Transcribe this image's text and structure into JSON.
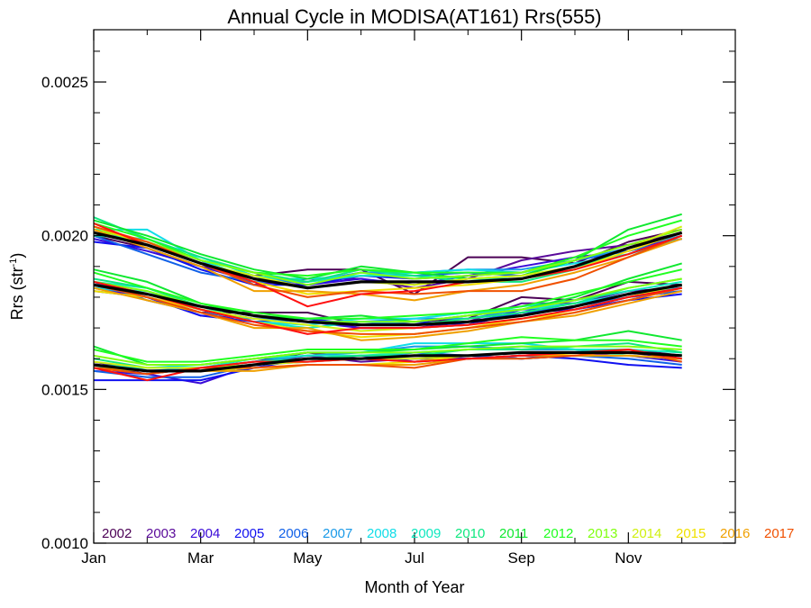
{
  "chart_data": {
    "type": "line",
    "title": "Annual Cycle in MODISA(AT161) Rrs(555)",
    "xlabel": "Month of Year",
    "ylabel_main": "Rrs (str",
    "ylabel_sup": "-1",
    "ylabel_close": ")",
    "x_range": [
      1,
      13
    ],
    "ylim": [
      0.001,
      0.00267
    ],
    "x_ticks": [
      {
        "value": 1,
        "label": "Jan"
      },
      {
        "value": 3,
        "label": "Mar"
      },
      {
        "value": 5,
        "label": "May"
      },
      {
        "value": 7,
        "label": "Jul"
      },
      {
        "value": 9,
        "label": "Sep"
      },
      {
        "value": 11,
        "label": "Nov"
      }
    ],
    "x_minor_ticks": [
      2,
      4,
      6,
      8,
      10,
      12
    ],
    "y_ticks": [
      {
        "value": 0.001,
        "label": "0.0010"
      },
      {
        "value": 0.0015,
        "label": "0.0015"
      },
      {
        "value": 0.002,
        "label": "0.0020"
      },
      {
        "value": 0.0025,
        "label": "0.0025"
      }
    ],
    "y_minor_ticks": [
      0.0011,
      0.0012,
      0.0013,
      0.0014,
      0.0016,
      0.0017,
      0.0018,
      0.0019,
      0.0021,
      0.0022,
      0.0023,
      0.0024,
      0.0026
    ],
    "months": [
      1,
      2,
      3,
      4,
      5,
      6,
      7,
      8,
      9,
      10,
      11,
      12
    ],
    "band_means": {
      "upper": [
        0.00201,
        0.00197,
        0.00191,
        0.00186,
        0.00183,
        0.00185,
        0.00185,
        0.00185,
        0.00186,
        0.0019,
        0.00196,
        0.00201
      ],
      "middle": [
        0.00184,
        0.00181,
        0.00177,
        0.00174,
        0.00172,
        0.00171,
        0.00171,
        0.00172,
        0.00174,
        0.00177,
        0.00181,
        0.00184
      ],
      "lower": [
        0.00158,
        0.00156,
        0.00156,
        0.00158,
        0.0016,
        0.0016,
        0.00161,
        0.00161,
        0.00162,
        0.00162,
        0.00162,
        0.00161
      ]
    },
    "mean_color": "#000000",
    "series": [
      {
        "name": "2002",
        "color": "#4b0055",
        "upper": [
          0.002,
          0.00196,
          0.0019,
          0.00187,
          0.00189,
          0.00189,
          0.00181,
          0.00193,
          0.00193,
          0.00191,
          0.00198,
          0.00202
        ],
        "middle": [
          0.00184,
          0.0018,
          0.00175,
          0.00175,
          0.00175,
          0.00171,
          0.00172,
          0.00173,
          0.0018,
          0.00179,
          0.00185,
          0.00184
        ],
        "lower": [
          0.00158,
          0.00155,
          0.00157,
          0.00159,
          0.00162,
          0.0016,
          0.00159,
          0.0016,
          0.00161,
          0.00162,
          0.00163,
          0.00161
        ]
      },
      {
        "name": "2003",
        "color": "#5a0a9a",
        "upper": [
          0.00201,
          0.00198,
          0.00192,
          0.00184,
          0.00186,
          0.00186,
          0.00183,
          0.00186,
          0.00192,
          0.00195,
          0.00197,
          0.00201
        ],
        "middle": [
          0.00183,
          0.0018,
          0.00176,
          0.00173,
          0.00173,
          0.0017,
          0.0017,
          0.00172,
          0.00178,
          0.00178,
          0.00182,
          0.00183
        ],
        "lower": [
          0.00159,
          0.00156,
          0.00156,
          0.00158,
          0.00161,
          0.00159,
          0.0016,
          0.0016,
          0.00161,
          0.00161,
          0.00162,
          0.0016
        ]
      },
      {
        "name": "2004",
        "color": "#3a0ad8",
        "upper": [
          0.00199,
          0.00195,
          0.0019,
          0.00185,
          0.00184,
          0.00186,
          0.00184,
          0.00187,
          0.0019,
          0.00193,
          0.00195,
          0.002
        ],
        "middle": [
          0.00183,
          0.0018,
          0.00174,
          0.00173,
          0.00172,
          0.0017,
          0.0017,
          0.00171,
          0.00176,
          0.00176,
          0.0018,
          0.00182
        ],
        "lower": [
          0.00156,
          0.00155,
          0.00152,
          0.00158,
          0.0016,
          0.00161,
          0.00159,
          0.00161,
          0.0016,
          0.00161,
          0.00161,
          0.00159
        ]
      },
      {
        "name": "2005",
        "color": "#1010f0",
        "upper": [
          0.00198,
          0.00196,
          0.00189,
          0.00184,
          0.00184,
          0.00187,
          0.00186,
          0.00187,
          0.00188,
          0.00192,
          0.00195,
          0.00199
        ],
        "middle": [
          0.00182,
          0.0018,
          0.00174,
          0.00172,
          0.00173,
          0.00171,
          0.00172,
          0.00171,
          0.00175,
          0.00176,
          0.00179,
          0.00181
        ],
        "lower": [
          0.00153,
          0.00153,
          0.00153,
          0.00157,
          0.0016,
          0.0016,
          0.00161,
          0.0016,
          0.00161,
          0.0016,
          0.00158,
          0.00157
        ]
      },
      {
        "name": "2006",
        "color": "#1060e8",
        "upper": [
          0.002,
          0.00194,
          0.00188,
          0.00185,
          0.00185,
          0.00188,
          0.00187,
          0.00188,
          0.00187,
          0.00192,
          0.00195,
          0.00199
        ],
        "middle": [
          0.00185,
          0.00179,
          0.00175,
          0.00173,
          0.00172,
          0.00172,
          0.00171,
          0.00172,
          0.00175,
          0.00177,
          0.0018,
          0.00182
        ],
        "lower": [
          0.00156,
          0.00154,
          0.00154,
          0.00158,
          0.00159,
          0.0016,
          0.00162,
          0.00161,
          0.0016,
          0.00161,
          0.0016,
          0.00158
        ]
      },
      {
        "name": "2007",
        "color": "#1a9ae8",
        "upper": [
          0.00201,
          0.00198,
          0.00191,
          0.00186,
          0.00185,
          0.00188,
          0.00188,
          0.00189,
          0.00189,
          0.00192,
          0.00196,
          0.002
        ],
        "middle": [
          0.00183,
          0.00181,
          0.00176,
          0.00173,
          0.00172,
          0.00172,
          0.00173,
          0.00173,
          0.00176,
          0.00178,
          0.00181,
          0.00183
        ],
        "lower": [
          0.00157,
          0.00156,
          0.00157,
          0.00159,
          0.00161,
          0.00162,
          0.00164,
          0.00164,
          0.00163,
          0.00163,
          0.00162,
          0.00161
        ]
      },
      {
        "name": "2008",
        "color": "#10dde8",
        "upper": [
          0.00202,
          0.00202,
          0.00192,
          0.00186,
          0.00186,
          0.00187,
          0.00188,
          0.00189,
          0.00188,
          0.00191,
          0.00194,
          0.00199
        ],
        "middle": [
          0.00183,
          0.00182,
          0.00176,
          0.00172,
          0.00171,
          0.00173,
          0.00173,
          0.00175,
          0.00176,
          0.00178,
          0.00181,
          0.00183
        ],
        "lower": [
          0.00157,
          0.00157,
          0.00158,
          0.0016,
          0.00162,
          0.00162,
          0.00165,
          0.00165,
          0.00165,
          0.00163,
          0.00161,
          0.0016
        ]
      },
      {
        "name": "2009",
        "color": "#10e8c0",
        "upper": [
          0.002,
          0.00199,
          0.00193,
          0.00187,
          0.00185,
          0.00187,
          0.00187,
          0.00186,
          0.00186,
          0.0019,
          0.00194,
          0.002
        ],
        "middle": [
          0.00185,
          0.00183,
          0.00177,
          0.00172,
          0.0017,
          0.00172,
          0.00172,
          0.00174,
          0.00177,
          0.00179,
          0.00182,
          0.00185
        ],
        "lower": [
          0.00158,
          0.00157,
          0.00157,
          0.0016,
          0.00161,
          0.00161,
          0.00162,
          0.00163,
          0.00164,
          0.00163,
          0.00163,
          0.00162
        ]
      },
      {
        "name": "2010",
        "color": "#10e880",
        "upper": [
          0.00206,
          0.00199,
          0.00193,
          0.00188,
          0.00185,
          0.00189,
          0.00187,
          0.00185,
          0.00185,
          0.00189,
          0.00196,
          0.00201
        ],
        "middle": [
          0.00186,
          0.00183,
          0.00177,
          0.00174,
          0.00172,
          0.00171,
          0.00171,
          0.00173,
          0.00175,
          0.00178,
          0.00183,
          0.00186
        ],
        "lower": [
          0.0016,
          0.00157,
          0.00157,
          0.00159,
          0.0016,
          0.00161,
          0.00161,
          0.00163,
          0.00163,
          0.00164,
          0.00165,
          0.00162
        ]
      },
      {
        "name": "2011",
        "color": "#10e830",
        "upper": [
          0.00205,
          0.002,
          0.00194,
          0.00189,
          0.00186,
          0.0019,
          0.00188,
          0.00186,
          0.00187,
          0.00192,
          0.00202,
          0.00207
        ],
        "middle": [
          0.00189,
          0.00185,
          0.00178,
          0.00174,
          0.00173,
          0.00174,
          0.00172,
          0.00174,
          0.00176,
          0.0018,
          0.00186,
          0.00191
        ],
        "lower": [
          0.00164,
          0.00158,
          0.00158,
          0.0016,
          0.00162,
          0.00162,
          0.00163,
          0.00164,
          0.00165,
          0.00166,
          0.00169,
          0.00166
        ]
      },
      {
        "name": "2012",
        "color": "#20ff20",
        "upper": [
          0.00204,
          0.00199,
          0.00192,
          0.00188,
          0.00187,
          0.00189,
          0.00188,
          0.00188,
          0.00188,
          0.00193,
          0.002,
          0.00205
        ],
        "middle": [
          0.00188,
          0.00183,
          0.00178,
          0.00175,
          0.00173,
          0.00173,
          0.00174,
          0.00175,
          0.00177,
          0.00181,
          0.00185,
          0.00189
        ],
        "lower": [
          0.00163,
          0.00159,
          0.00159,
          0.00161,
          0.00163,
          0.00163,
          0.00163,
          0.00165,
          0.00167,
          0.00166,
          0.00166,
          0.00164
        ]
      },
      {
        "name": "2013",
        "color": "#80ff10",
        "upper": [
          0.00202,
          0.00198,
          0.00192,
          0.00188,
          0.00184,
          0.00188,
          0.00186,
          0.00187,
          0.00188,
          0.00192,
          0.00197,
          0.00202
        ],
        "middle": [
          0.00185,
          0.00182,
          0.00177,
          0.00174,
          0.00172,
          0.00172,
          0.00172,
          0.00174,
          0.00176,
          0.00179,
          0.00183,
          0.00186
        ],
        "lower": [
          0.00161,
          0.00158,
          0.00158,
          0.0016,
          0.00162,
          0.00162,
          0.00162,
          0.00163,
          0.00164,
          0.00164,
          0.00164,
          0.00163
        ]
      },
      {
        "name": "2014",
        "color": "#d0f010",
        "upper": [
          0.00203,
          0.00197,
          0.00191,
          0.00187,
          0.00183,
          0.00185,
          0.00184,
          0.00186,
          0.00187,
          0.0019,
          0.00196,
          0.00203
        ],
        "middle": [
          0.00184,
          0.00181,
          0.00176,
          0.00173,
          0.00171,
          0.00169,
          0.0017,
          0.00171,
          0.00173,
          0.00176,
          0.0018,
          0.00184
        ],
        "lower": [
          0.00159,
          0.00157,
          0.00157,
          0.00158,
          0.00159,
          0.0016,
          0.0016,
          0.00161,
          0.00162,
          0.00162,
          0.00162,
          0.00161
        ]
      },
      {
        "name": "2015",
        "color": "#f0e000",
        "upper": [
          0.00203,
          0.00197,
          0.00191,
          0.00185,
          0.00181,
          0.00182,
          0.00183,
          0.00184,
          0.00186,
          0.00189,
          0.00195,
          0.00201
        ],
        "middle": [
          0.00182,
          0.0018,
          0.00176,
          0.00172,
          0.00169,
          0.00167,
          0.00168,
          0.0017,
          0.00173,
          0.00175,
          0.00179,
          0.00183
        ],
        "lower": [
          0.00158,
          0.00156,
          0.00156,
          0.00157,
          0.00158,
          0.00158,
          0.00159,
          0.00161,
          0.00162,
          0.00161,
          0.00161,
          0.0016
        ]
      },
      {
        "name": "2016",
        "color": "#f0a000",
        "upper": [
          0.00202,
          0.00196,
          0.0019,
          0.00182,
          0.00182,
          0.00181,
          0.00179,
          0.00182,
          0.00184,
          0.00188,
          0.00193,
          0.00199
        ],
        "middle": [
          0.00183,
          0.00179,
          0.00175,
          0.0017,
          0.0017,
          0.00166,
          0.00167,
          0.00169,
          0.00172,
          0.00174,
          0.00178,
          0.00182
        ],
        "lower": [
          0.00157,
          0.00156,
          0.00156,
          0.00156,
          0.00158,
          0.00158,
          0.00158,
          0.0016,
          0.00161,
          0.00161,
          0.00161,
          0.0016
        ]
      },
      {
        "name": "2017",
        "color": "#f05000",
        "upper": [
          0.00203,
          0.00198,
          0.00191,
          0.00184,
          0.0018,
          0.00182,
          0.00181,
          0.00182,
          0.00182,
          0.00186,
          0.00193,
          0.002
        ],
        "middle": [
          0.00184,
          0.0018,
          0.00175,
          0.00171,
          0.00169,
          0.00168,
          0.00168,
          0.0017,
          0.00172,
          0.00175,
          0.00179,
          0.00183
        ],
        "lower": [
          0.00157,
          0.00155,
          0.00157,
          0.00157,
          0.00158,
          0.00158,
          0.00157,
          0.0016,
          0.0016,
          0.00161,
          0.00163,
          0.00159
        ]
      },
      {
        "name": "",
        "color": "#ff1010",
        "upper": [
          0.00204,
          0.00197,
          0.00191,
          0.00185,
          0.00177,
          0.00181,
          0.00182,
          0.00185,
          0.00186,
          0.00189,
          0.00194,
          0.002
        ],
        "middle": [
          0.00185,
          0.00181,
          0.00176,
          0.00172,
          0.00168,
          0.0017,
          0.0017,
          0.00171,
          0.00173,
          0.00176,
          0.0018,
          0.00183
        ],
        "lower": [
          0.00157,
          0.00153,
          0.00157,
          0.00159,
          0.00159,
          0.0016,
          0.00159,
          0.0016,
          0.00161,
          0.00162,
          0.00163,
          0.0016
        ]
      }
    ]
  }
}
